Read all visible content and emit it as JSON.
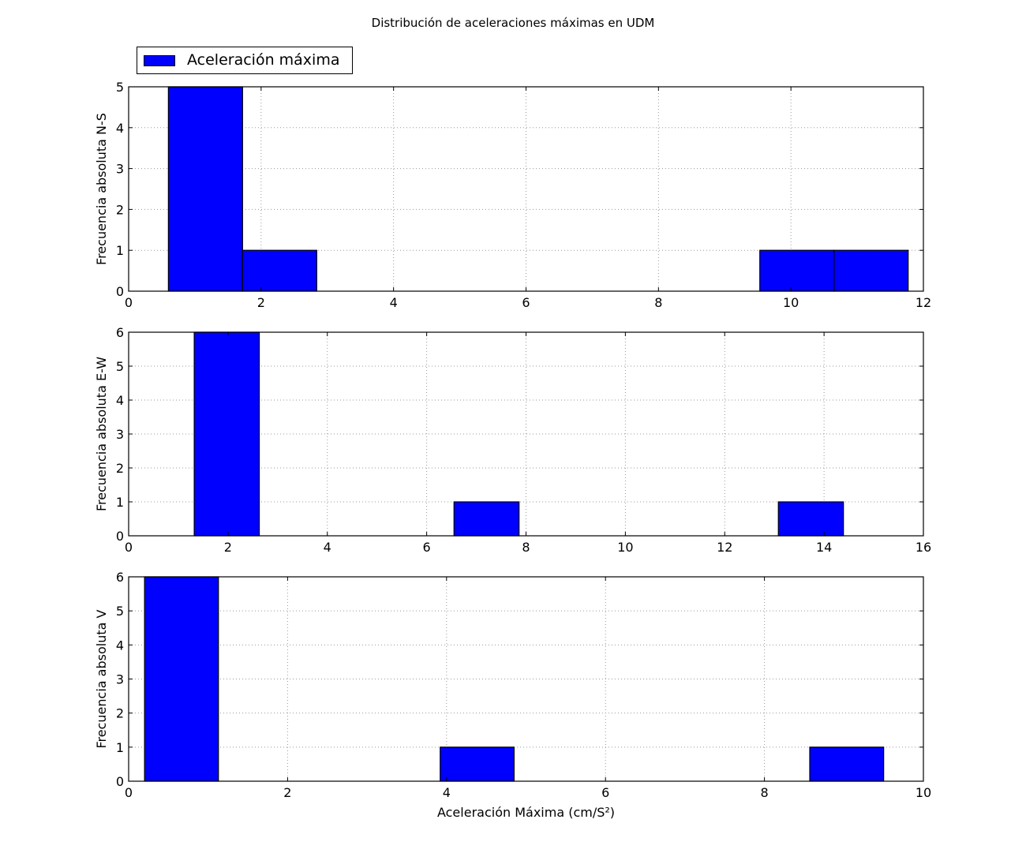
{
  "figure": {
    "title": "Distribución de aceleraciones máximas en UDM",
    "legend": {
      "label": "Aceleración máxima",
      "location": "upper-left"
    },
    "colors": {
      "bar": "#0000ff",
      "edge": "#000000",
      "grid": "#999999"
    }
  },
  "chart_data": [
    {
      "type": "bar",
      "subtype": "histogram",
      "name": "N-S",
      "ylabel": "Frecuencia absoluta N-S",
      "xlabel": "",
      "xlim": [
        0,
        12
      ],
      "ylim": [
        0,
        5
      ],
      "xticks": [
        0,
        2,
        4,
        6,
        8,
        10,
        12
      ],
      "yticks": [
        0,
        1,
        2,
        3,
        4,
        5
      ],
      "grid": true,
      "bins": [
        {
          "x0": 0.6,
          "x1": 1.72,
          "count": 5
        },
        {
          "x0": 1.72,
          "x1": 2.84,
          "count": 1
        },
        {
          "x0": 9.53,
          "x1": 10.65,
          "count": 1
        },
        {
          "x0": 10.65,
          "x1": 11.77,
          "count": 1
        }
      ]
    },
    {
      "type": "bar",
      "subtype": "histogram",
      "name": "E-W",
      "ylabel": "Frecuencia absoluta E-W",
      "xlabel": "",
      "xlim": [
        0,
        16
      ],
      "ylim": [
        0,
        6
      ],
      "xticks": [
        0,
        2,
        4,
        6,
        8,
        10,
        12,
        14,
        16
      ],
      "yticks": [
        0,
        1,
        2,
        3,
        4,
        5,
        6
      ],
      "grid": true,
      "bins": [
        {
          "x0": 1.32,
          "x1": 2.63,
          "count": 6
        },
        {
          "x0": 6.55,
          "x1": 7.86,
          "count": 1
        },
        {
          "x0": 13.08,
          "x1": 14.39,
          "count": 1
        }
      ]
    },
    {
      "type": "bar",
      "subtype": "histogram",
      "name": "V",
      "ylabel": "Frecuencia absoluta V",
      "xlabel": "Aceleración Máxima (cm/S²)",
      "xlim": [
        0,
        10
      ],
      "ylim": [
        0,
        6
      ],
      "xticks": [
        0,
        2,
        4,
        6,
        8,
        10
      ],
      "yticks": [
        0,
        1,
        2,
        3,
        4,
        5,
        6
      ],
      "grid": true,
      "bins": [
        {
          "x0": 0.2,
          "x1": 1.13,
          "count": 6
        },
        {
          "x0": 3.92,
          "x1": 4.85,
          "count": 1
        },
        {
          "x0": 8.57,
          "x1": 9.5,
          "count": 1
        }
      ]
    }
  ]
}
